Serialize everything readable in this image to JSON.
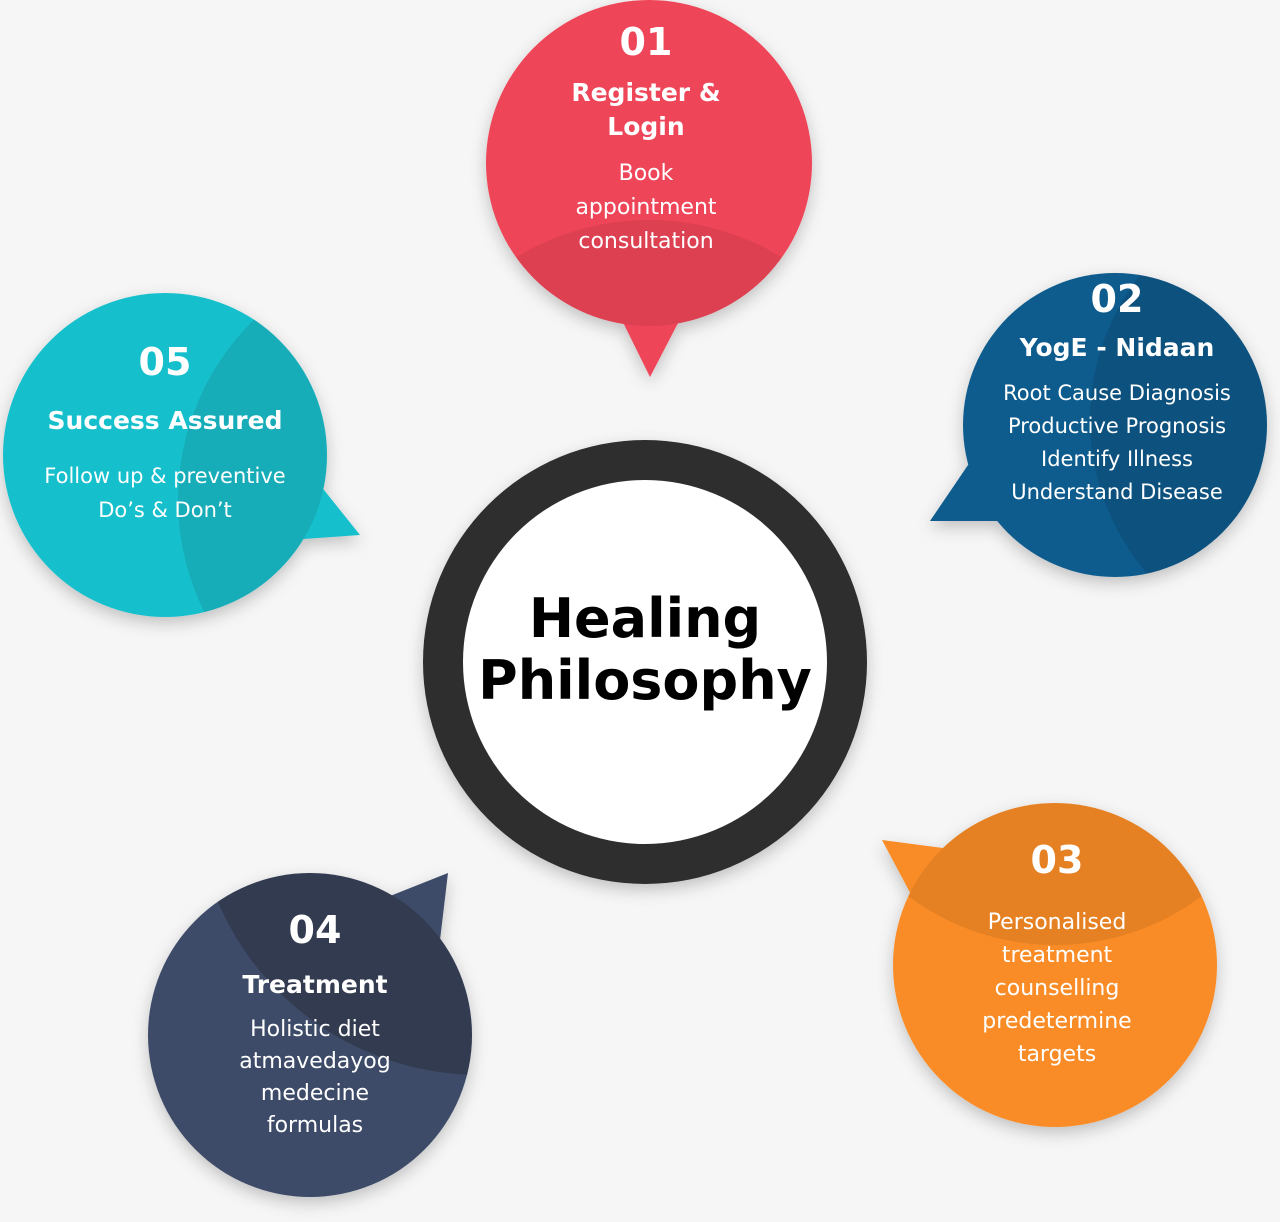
{
  "center": {
    "title_line1": "Healing",
    "title_line2": "Philosophy"
  },
  "colors": {
    "step01": "#ef4558",
    "step02": "#105b8d",
    "step03": "#f98c27",
    "step04": "#3e4b67",
    "step05": "#18bfcc",
    "hub_ring": "#2e2e2e",
    "hub_fill": "#ffffff"
  },
  "steps": [
    {
      "number": "01",
      "title_lines": [
        "Register &",
        "Login"
      ],
      "description_lines": [
        "Book",
        "appointment",
        "consultation"
      ]
    },
    {
      "number": "02",
      "title_lines": [
        "YogE - Nidaan"
      ],
      "description_lines": [
        "Root Cause Diagnosis",
        "Productive Prognosis",
        "Identify Illness",
        "Understand Disease"
      ]
    },
    {
      "number": "03",
      "title_lines": [],
      "description_lines": [
        "Personalised",
        "treatment",
        "counselling",
        "predetermine",
        "targets"
      ]
    },
    {
      "number": "04",
      "title_lines": [
        "Treatment"
      ],
      "description_lines": [
        "Holistic diet",
        "atmavedayog",
        "medecine",
        "formulas"
      ]
    },
    {
      "number": "05",
      "title_lines": [
        "Success Assured"
      ],
      "description_lines": [
        "Follow up & preventive",
        "Do’s & Don’t"
      ]
    }
  ]
}
